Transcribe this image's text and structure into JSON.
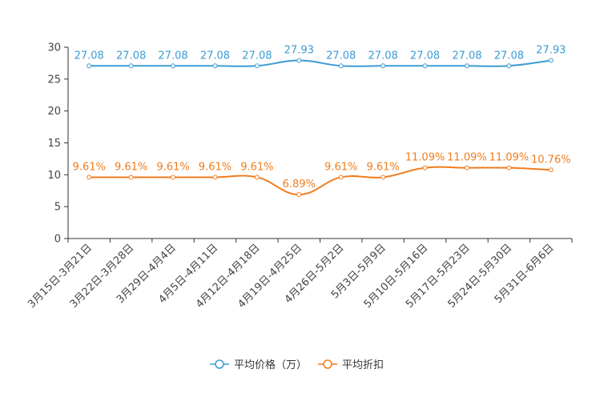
{
  "chart_data": {
    "type": "line",
    "title": "",
    "xlabel": "",
    "ylabel": "",
    "ylim": [
      0,
      30
    ],
    "yticks": [
      0,
      5,
      10,
      15,
      20,
      25,
      30
    ],
    "grid": false,
    "legend_position": "bottom-center",
    "categories": [
      "3月15日-3月21日",
      "3月22日-3月28日",
      "3月29日-4月4日",
      "4月5日-4月11日",
      "4月12日-4月18日",
      "4月19日-4月25日",
      "4月26日-5月2日",
      "5月3日-5月9日",
      "5月10日-5月16日",
      "5月17日-5月23日",
      "5月24日-5月30日",
      "5月31日-6月6日"
    ],
    "series": [
      {
        "name": "平均价格（万）",
        "color": "#3b9bd4",
        "values": [
          27.08,
          27.08,
          27.08,
          27.08,
          27.08,
          27.93,
          27.08,
          27.08,
          27.08,
          27.08,
          27.08,
          27.93
        ],
        "labels": [
          "27.08",
          "27.08",
          "27.08",
          "27.08",
          "27.08",
          "27.93",
          "27.08",
          "27.08",
          "27.08",
          "27.08",
          "27.08",
          "27.93"
        ]
      },
      {
        "name": "平均折扣",
        "color": "#f07c1c",
        "values": [
          9.61,
          9.61,
          9.61,
          9.61,
          9.61,
          6.89,
          9.61,
          9.61,
          11.09,
          11.09,
          11.09,
          10.76
        ],
        "labels": [
          "9.61%",
          "9.61%",
          "9.61%",
          "9.61%",
          "9.61%",
          "6.89%",
          "9.61%",
          "9.61%",
          "11.09%",
          "11.09%",
          "11.09%",
          "10.76%"
        ]
      }
    ]
  }
}
